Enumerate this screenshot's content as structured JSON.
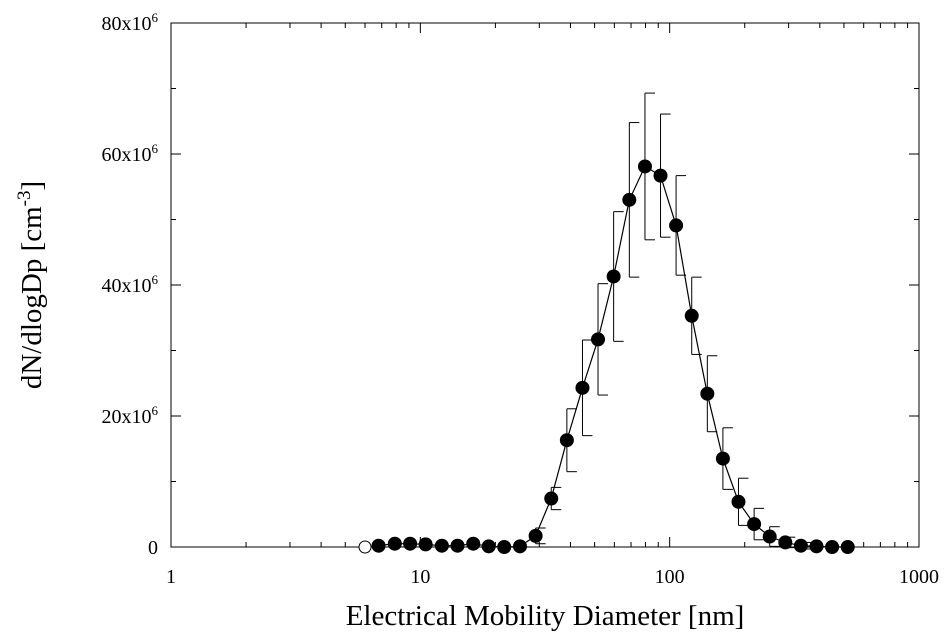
{
  "chart_data": {
    "type": "scatter",
    "xlabel": "Electrical Mobility Diameter [nm]",
    "ylabel": "dN/dlogDp [cm",
    "ylabel_sup": "-3",
    "ylabel_close": "]",
    "x_scale": "log",
    "xlim": [
      1,
      1000
    ],
    "ylim": [
      0,
      80000000
    ],
    "grid": false,
    "x_ticks": [
      {
        "value": 1,
        "label": "1"
      },
      {
        "value": 10,
        "label": "10"
      },
      {
        "value": 100,
        "label": "100"
      },
      {
        "value": 1000,
        "label": "1000"
      }
    ],
    "y_ticks": [
      {
        "value": 0,
        "label": "0",
        "sup": ""
      },
      {
        "value": 20000000,
        "label": "20x10",
        "sup": "6"
      },
      {
        "value": 40000000,
        "label": "40x10",
        "sup": "6"
      },
      {
        "value": 60000000,
        "label": "60x10",
        "sup": "6"
      },
      {
        "value": 80000000,
        "label": "80x10",
        "sup": "6"
      }
    ],
    "open_point": {
      "x": 6.0,
      "y": 0
    },
    "series": [
      {
        "style": "filled circles with line and error bars",
        "points": [
          {
            "x": 6.8,
            "y": 200000,
            "err": 0
          },
          {
            "x": 7.9,
            "y": 500000,
            "err": 0
          },
          {
            "x": 9.1,
            "y": 500000,
            "err": 0
          },
          {
            "x": 10.5,
            "y": 400000,
            "err": 0
          },
          {
            "x": 12.2,
            "y": 200000,
            "err": 0
          },
          {
            "x": 14.1,
            "y": 200000,
            "err": 0
          },
          {
            "x": 16.3,
            "y": 500000,
            "err": 0
          },
          {
            "x": 18.8,
            "y": 100000,
            "err": 0
          },
          {
            "x": 21.7,
            "y": 0,
            "err": 0
          },
          {
            "x": 25.1,
            "y": 100000,
            "err": 0
          },
          {
            "x": 29.0,
            "y": 1700000,
            "err": 1200000
          },
          {
            "x": 33.5,
            "y": 7400000,
            "err": 1700000
          },
          {
            "x": 38.7,
            "y": 16300000,
            "err": 4800000
          },
          {
            "x": 44.7,
            "y": 24300000,
            "err": 7300000
          },
          {
            "x": 51.6,
            "y": 31700000,
            "err": 8500000
          },
          {
            "x": 59.6,
            "y": 41300000,
            "err": 9900000
          },
          {
            "x": 68.9,
            "y": 53000000,
            "err": 11800000
          },
          {
            "x": 79.6,
            "y": 58100000,
            "err": 11200000
          },
          {
            "x": 91.9,
            "y": 56700000,
            "err": 9400000
          },
          {
            "x": 106.1,
            "y": 49100000,
            "err": 7600000
          },
          {
            "x": 122.6,
            "y": 35300000,
            "err": 5900000
          },
          {
            "x": 141.6,
            "y": 23400000,
            "err": 5800000
          },
          {
            "x": 163.5,
            "y": 13500000,
            "err": 4700000
          },
          {
            "x": 188.8,
            "y": 6900000,
            "err": 3600000
          },
          {
            "x": 218.1,
            "y": 3500000,
            "err": 2400000
          },
          {
            "x": 251.9,
            "y": 1600000,
            "err": 1500000
          },
          {
            "x": 290.9,
            "y": 700000,
            "err": 800000
          },
          {
            "x": 336.0,
            "y": 200000,
            "err": 500000
          },
          {
            "x": 388.1,
            "y": 100000,
            "err": 0
          },
          {
            "x": 448.2,
            "y": 0,
            "err": 0
          },
          {
            "x": 517.7,
            "y": 0,
            "err": 0
          }
        ]
      }
    ]
  }
}
